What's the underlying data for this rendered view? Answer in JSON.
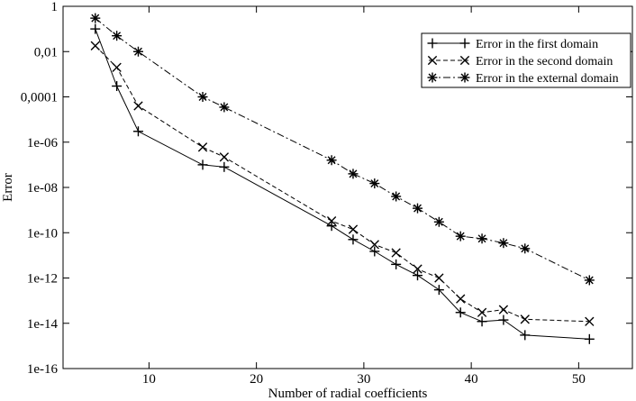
{
  "chart_data": {
    "type": "line",
    "title": "",
    "xlabel": "Number of radial coefficients",
    "ylabel": "Error",
    "xlim": [
      2,
      55
    ],
    "ylim": [
      1e-16,
      1
    ],
    "yscale": "log",
    "grid": false,
    "legend_position": "top-right",
    "x_ticks": [
      10,
      20,
      30,
      40,
      50
    ],
    "x_tick_labels": [
      "10",
      "20",
      "30",
      "40",
      "50"
    ],
    "y_ticks": [
      1,
      0.01,
      0.0001,
      1e-06,
      1e-08,
      1e-10,
      1e-12,
      1e-14,
      1e-16
    ],
    "y_tick_labels": [
      "1",
      "0,01",
      "0,0001",
      "1e-06",
      "1e-08",
      "1e-10",
      "1e-12",
      "1e-14",
      "1e-16"
    ],
    "series": [
      {
        "name": "Error in the first domain",
        "marker": "plus",
        "dash": "solid",
        "x": [
          5,
          7,
          9,
          15,
          17,
          27,
          29,
          31,
          33,
          35,
          37,
          39,
          41,
          43,
          45,
          51
        ],
        "y": [
          0.1,
          0.0003,
          3e-06,
          1e-07,
          8e-08,
          2e-10,
          5e-11,
          1.5e-11,
          4e-12,
          1.3e-12,
          3e-13,
          3e-14,
          1.2e-14,
          1.4e-14,
          3e-15,
          2e-15
        ]
      },
      {
        "name": "Error in the second domain",
        "marker": "x",
        "dash": "dashed",
        "x": [
          5,
          7,
          9,
          15,
          17,
          27,
          29,
          31,
          33,
          35,
          37,
          39,
          41,
          43,
          45,
          51
        ],
        "y": [
          0.018,
          0.002,
          4e-05,
          6e-07,
          2.2e-07,
          3.3e-10,
          1.4e-10,
          3e-11,
          1.3e-11,
          2.5e-12,
          1e-12,
          1.2e-13,
          3e-14,
          4e-14,
          1.5e-14,
          1.2e-14
        ]
      },
      {
        "name": "Error in the external domain",
        "marker": "asterisk",
        "dash": "dashdot",
        "x": [
          5,
          7,
          9,
          15,
          17,
          27,
          29,
          31,
          33,
          35,
          37,
          39,
          41,
          43,
          45,
          51
        ],
        "y": [
          0.3,
          0.05,
          0.01,
          0.0001,
          3.5e-05,
          1.6e-07,
          4e-08,
          1.5e-08,
          4e-09,
          1.2e-09,
          3e-10,
          7e-11,
          5.5e-11,
          3.5e-11,
          2e-11,
          8e-13
        ]
      }
    ]
  },
  "colors": {
    "background": "#ffffff",
    "lines": "#000000"
  }
}
